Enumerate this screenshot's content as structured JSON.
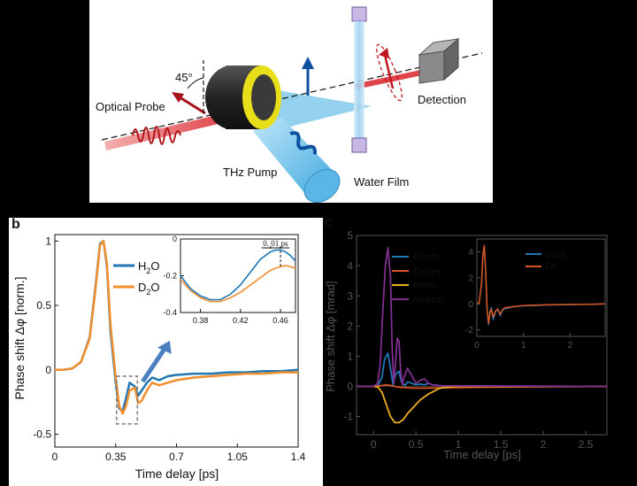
{
  "panel_a": {
    "labels": {
      "optical_probe": "Optical Probe",
      "angle": "45°",
      "thz_pump": "THz Pump",
      "water_film": "Water Film",
      "detection": "Detection"
    },
    "colors": {
      "probe": "#d8232a",
      "pump": "#3fa9e0",
      "film": "#a5d3f0",
      "lens": "#e8df1a",
      "arrow": "#0d4fa0"
    }
  },
  "panel_b": {
    "letter": "b",
    "chart_data": {
      "type": "line",
      "ylabel": "Phase shift Δφ [norm.]",
      "xlabel": "Time delay [ps]",
      "xlim": [
        0,
        1.4
      ],
      "ylim": [
        -0.6,
        1.05
      ],
      "xticks": [
        "0",
        "0.35",
        "0.7",
        "1.05",
        "1.4"
      ],
      "yticks": [
        "-0.5",
        "0",
        "0.5",
        "1"
      ],
      "legend": [
        "H₂O",
        "D₂O"
      ],
      "legend_sub": {
        "h2o": [
          "H",
          "2",
          "O"
        ],
        "d2o": [
          "D",
          "2",
          "O"
        ]
      },
      "series": [
        {
          "name": "H₂O",
          "color": "#1f77b4",
          "x": [
            0,
            0.05,
            0.1,
            0.15,
            0.2,
            0.23,
            0.26,
            0.28,
            0.3,
            0.32,
            0.35,
            0.37,
            0.39,
            0.41,
            0.43,
            0.46,
            0.48,
            0.5,
            0.53,
            0.56,
            0.6,
            0.65,
            0.7,
            0.8,
            0.9,
            1.0,
            1.1,
            1.2,
            1.3,
            1.4
          ],
          "y": [
            0,
            0.0,
            0.01,
            0.06,
            0.25,
            0.6,
            0.98,
            1.0,
            0.8,
            0.3,
            -0.1,
            -0.3,
            -0.32,
            -0.22,
            -0.1,
            -0.13,
            -0.2,
            -0.16,
            -0.1,
            -0.06,
            -0.08,
            -0.05,
            -0.04,
            -0.03,
            -0.03,
            -0.02,
            -0.02,
            -0.01,
            -0.01,
            0.0
          ]
        },
        {
          "name": "D₂O",
          "color": "#f28e2b",
          "x": [
            0,
            0.05,
            0.1,
            0.15,
            0.2,
            0.23,
            0.26,
            0.28,
            0.3,
            0.32,
            0.35,
            0.37,
            0.39,
            0.41,
            0.43,
            0.46,
            0.48,
            0.5,
            0.53,
            0.56,
            0.6,
            0.65,
            0.7,
            0.8,
            0.9,
            1.0,
            1.1,
            1.2,
            1.3,
            1.4
          ],
          "y": [
            0,
            0.0,
            0.01,
            0.06,
            0.24,
            0.58,
            0.97,
            1.0,
            0.82,
            0.35,
            -0.06,
            -0.28,
            -0.34,
            -0.28,
            -0.16,
            -0.14,
            -0.26,
            -0.24,
            -0.16,
            -0.1,
            -0.12,
            -0.1,
            -0.08,
            -0.06,
            -0.05,
            -0.04,
            -0.03,
            -0.03,
            -0.02,
            -0.02
          ]
        }
      ],
      "inset": {
        "xlim": [
          0.36,
          0.475
        ],
        "ylim": [
          -0.4,
          0.0
        ],
        "xticks": [
          "0.38",
          "0.42",
          "0.46"
        ],
        "yticks": [
          "-0.4",
          "-0.2",
          "0"
        ],
        "annotation": "0. 01 ps",
        "series": [
          {
            "name": "H₂O",
            "color": "#1f77b4",
            "x": [
              0.36,
              0.37,
              0.38,
              0.39,
              0.4,
              0.41,
              0.42,
              0.43,
              0.44,
              0.45,
              0.455,
              0.46,
              0.465,
              0.47,
              0.475
            ],
            "y": [
              -0.2,
              -0.27,
              -0.31,
              -0.33,
              -0.33,
              -0.3,
              -0.25,
              -0.18,
              -0.11,
              -0.07,
              -0.06,
              -0.06,
              -0.07,
              -0.09,
              -0.12
            ]
          },
          {
            "name": "D₂O",
            "color": "#f28e2b",
            "x": [
              0.36,
              0.37,
              0.38,
              0.39,
              0.4,
              0.41,
              0.42,
              0.43,
              0.44,
              0.45,
              0.46,
              0.465,
              0.47,
              0.475
            ],
            "y": [
              -0.22,
              -0.28,
              -0.32,
              -0.34,
              -0.34,
              -0.32,
              -0.29,
              -0.25,
              -0.21,
              -0.17,
              -0.15,
              -0.145,
              -0.15,
              -0.16
            ]
          }
        ]
      }
    }
  },
  "panel_c": {
    "letter": "c",
    "chart_data": {
      "type": "line",
      "ylabel": "Phase shift Δφ [mrad]",
      "xlabel": "Time delay [ps]",
      "xlim": [
        -0.2,
        2.75
      ],
      "ylim": [
        -1.6,
        5.0
      ],
      "xticks": [
        "0",
        "0.5",
        "1",
        "1.5",
        "2",
        "2.5"
      ],
      "yticks": [
        "-1",
        "0",
        "1",
        "2",
        "3",
        "4",
        "5"
      ],
      "legend": [
        "Electr.",
        "Debye",
        "Bend.",
        "Stretch."
      ],
      "series": [
        {
          "name": "Electr.",
          "color": "#1f77b4",
          "x": [
            -0.2,
            0.0,
            0.05,
            0.1,
            0.13,
            0.17,
            0.2,
            0.23,
            0.26,
            0.3,
            0.33,
            0.37,
            0.4,
            0.45,
            0.5,
            0.55,
            0.6,
            0.65,
            0.7,
            0.8,
            1.0,
            2.75
          ],
          "y": [
            0,
            0,
            0.02,
            0.3,
            0.9,
            1.1,
            0.6,
            0.05,
            0.4,
            0.5,
            0.15,
            0.02,
            0.15,
            0.1,
            0.05,
            0.08,
            0.05,
            0.1,
            0.05,
            0.02,
            0,
            0
          ]
        },
        {
          "name": "Debye",
          "color": "#d9541e",
          "x": [
            -0.2,
            0.0,
            0.05,
            0.1,
            0.15,
            0.2,
            0.3,
            0.5,
            0.8,
            1.2,
            2.0,
            2.75
          ],
          "y": [
            0,
            0,
            0.01,
            0.03,
            0.05,
            0.03,
            -0.03,
            -0.06,
            -0.05,
            -0.03,
            -0.01,
            0
          ]
        },
        {
          "name": "Bend.",
          "color": "#edb120",
          "x": [
            -0.2,
            0.0,
            0.05,
            0.1,
            0.15,
            0.2,
            0.25,
            0.3,
            0.35,
            0.4,
            0.45,
            0.5,
            0.55,
            0.6,
            0.65,
            0.7,
            0.75,
            0.8,
            0.9,
            1.0,
            2.75
          ],
          "y": [
            0,
            0,
            -0.02,
            -0.2,
            -0.6,
            -1.0,
            -1.2,
            -1.2,
            -1.1,
            -0.9,
            -0.75,
            -0.6,
            -0.45,
            -0.35,
            -0.25,
            -0.18,
            -0.1,
            -0.05,
            -0.02,
            0,
            0
          ]
        },
        {
          "name": "Stretch.",
          "color": "#7e2f8e",
          "x": [
            -0.2,
            0.0,
            0.05,
            0.08,
            0.11,
            0.14,
            0.17,
            0.2,
            0.22,
            0.24,
            0.26,
            0.28,
            0.3,
            0.32,
            0.34,
            0.36,
            0.4,
            0.45,
            0.5,
            0.55,
            0.6,
            0.65,
            0.7,
            0.8,
            2.75
          ],
          "y": [
            0,
            0,
            0.1,
            0.8,
            2.5,
            4.0,
            4.6,
            3.6,
            1.2,
            0.1,
            0.8,
            1.6,
            1.5,
            0.5,
            0.05,
            0.3,
            0.6,
            0.35,
            0.1,
            0.2,
            0.25,
            0.1,
            0.05,
            0.02,
            0
          ]
        }
      ],
      "inset": {
        "xlim": [
          0,
          2.75
        ],
        "ylim": [
          -2.5,
          5.0
        ],
        "xticks": [
          "0",
          "1",
          "2"
        ],
        "yticks": [
          "-2",
          "0",
          "2",
          "4"
        ],
        "legend": [
          "Data",
          "Fit"
        ],
        "series": [
          {
            "name": "Data",
            "color": "#1f77b4",
            "x": [
              0,
              0.05,
              0.1,
              0.13,
              0.16,
              0.19,
              0.22,
              0.25,
              0.28,
              0.31,
              0.35,
              0.4,
              0.45,
              0.5,
              0.55,
              0.6,
              0.7,
              0.8,
              1.0,
              1.5,
              2.0,
              2.5,
              2.75
            ],
            "y": [
              0,
              0.1,
              1.5,
              3.8,
              4.4,
              2.5,
              -0.5,
              -1.6,
              -0.6,
              -0.3,
              -1.2,
              -0.6,
              -0.4,
              -0.9,
              -0.5,
              -0.35,
              -0.3,
              -0.2,
              -0.15,
              -0.08,
              -0.05,
              -0.02,
              0
            ]
          },
          {
            "name": "Fit",
            "color": "#d9541e",
            "x": [
              0,
              0.05,
              0.1,
              0.13,
              0.16,
              0.19,
              0.22,
              0.25,
              0.28,
              0.31,
              0.35,
              0.4,
              0.45,
              0.5,
              0.55,
              0.6,
              0.7,
              0.8,
              1.0,
              1.5,
              2.0,
              2.5,
              2.75
            ],
            "y": [
              0,
              0.1,
              1.6,
              3.9,
              4.5,
              2.4,
              -0.4,
              -1.5,
              -0.7,
              -0.4,
              -1.0,
              -0.55,
              -0.4,
              -0.8,
              -0.45,
              -0.3,
              -0.25,
              -0.2,
              -0.12,
              -0.06,
              -0.04,
              -0.02,
              0
            ]
          }
        ]
      }
    }
  }
}
